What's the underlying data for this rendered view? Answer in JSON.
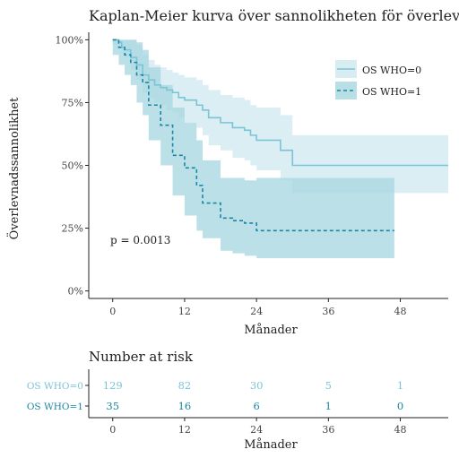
{
  "chart_data": [
    {
      "type": "line",
      "subtype": "kaplan-meier",
      "title": "Kaplan-Meier kurva över sannolikheten för överlevnad",
      "xlabel": "Månader",
      "ylabel": "Överlevnadssannolikhet",
      "xlim": [
        -4,
        56
      ],
      "ylim": [
        -0.03,
        1.03
      ],
      "x_ticks": [
        0,
        12,
        24,
        36,
        48
      ],
      "y_ticks": [
        0,
        0.25,
        0.5,
        0.75,
        1.0
      ],
      "y_tick_labels": [
        "0%",
        "25%",
        "50%",
        "75%",
        "100%"
      ],
      "grid": false,
      "legend_position": "top-right",
      "annotation": "p = 0.0013",
      "series": [
        {
          "name": "OS WHO=0",
          "color": "#7dc3d6",
          "band_color": "#d3ebf1",
          "line_style": "solid",
          "x": [
            0,
            1,
            1.5,
            2,
            3,
            4,
            5,
            6,
            7,
            8,
            9,
            10,
            11,
            12,
            14,
            15,
            16,
            18,
            20,
            22,
            23,
            24,
            28,
            30,
            36,
            48,
            56
          ],
          "y": [
            1.0,
            0.99,
            0.97,
            0.96,
            0.93,
            0.9,
            0.86,
            0.84,
            0.82,
            0.81,
            0.8,
            0.79,
            0.77,
            0.76,
            0.74,
            0.72,
            0.69,
            0.67,
            0.65,
            0.64,
            0.62,
            0.6,
            0.56,
            0.5,
            0.5,
            0.5,
            0.5
          ],
          "lower": [
            0.98,
            0.97,
            0.95,
            0.93,
            0.88,
            0.84,
            0.79,
            0.77,
            0.75,
            0.74,
            0.72,
            0.71,
            0.69,
            0.67,
            0.65,
            0.62,
            0.58,
            0.56,
            0.53,
            0.52,
            0.5,
            0.48,
            0.44,
            0.39,
            0.39,
            0.39,
            0.39
          ],
          "upper": [
            1.0,
            1.0,
            1.0,
            1.0,
            1.0,
            0.98,
            0.94,
            0.92,
            0.9,
            0.89,
            0.88,
            0.87,
            0.86,
            0.85,
            0.84,
            0.82,
            0.8,
            0.78,
            0.77,
            0.76,
            0.74,
            0.73,
            0.7,
            0.62,
            0.62,
            0.62,
            0.62
          ]
        },
        {
          "name": "OS WHO=1",
          "color": "#1a87a4",
          "band_color": "#a6d6e0",
          "line_style": "dashed",
          "x": [
            0,
            1,
            2,
            3,
            4,
            5,
            6,
            8,
            10,
            12,
            14,
            15,
            18,
            20,
            22,
            24,
            30,
            47
          ],
          "y": [
            1.0,
            0.97,
            0.94,
            0.91,
            0.86,
            0.83,
            0.74,
            0.66,
            0.54,
            0.49,
            0.42,
            0.35,
            0.29,
            0.28,
            0.27,
            0.24,
            0.24,
            0.24
          ],
          "lower": [
            0.94,
            0.9,
            0.86,
            0.82,
            0.75,
            0.7,
            0.6,
            0.5,
            0.38,
            0.3,
            0.24,
            0.21,
            0.16,
            0.15,
            0.14,
            0.13,
            0.13,
            0.13
          ],
          "upper": [
            1.0,
            1.0,
            1.0,
            1.0,
            0.99,
            0.96,
            0.89,
            0.82,
            0.73,
            0.67,
            0.6,
            0.52,
            0.45,
            0.45,
            0.44,
            0.45,
            0.45,
            0.45
          ]
        }
      ]
    },
    {
      "type": "table",
      "title": "Number at risk",
      "xlabel": "Månader",
      "x_ticks": [
        0,
        12,
        24,
        36,
        48
      ],
      "rows": [
        {
          "name": "OS WHO=0",
          "color": "#7dc3d6",
          "values": [
            129,
            82,
            30,
            5,
            1
          ]
        },
        {
          "name": "OS WHO=1",
          "color": "#1a87a4",
          "values": [
            35,
            16,
            6,
            1,
            0
          ]
        }
      ]
    }
  ]
}
